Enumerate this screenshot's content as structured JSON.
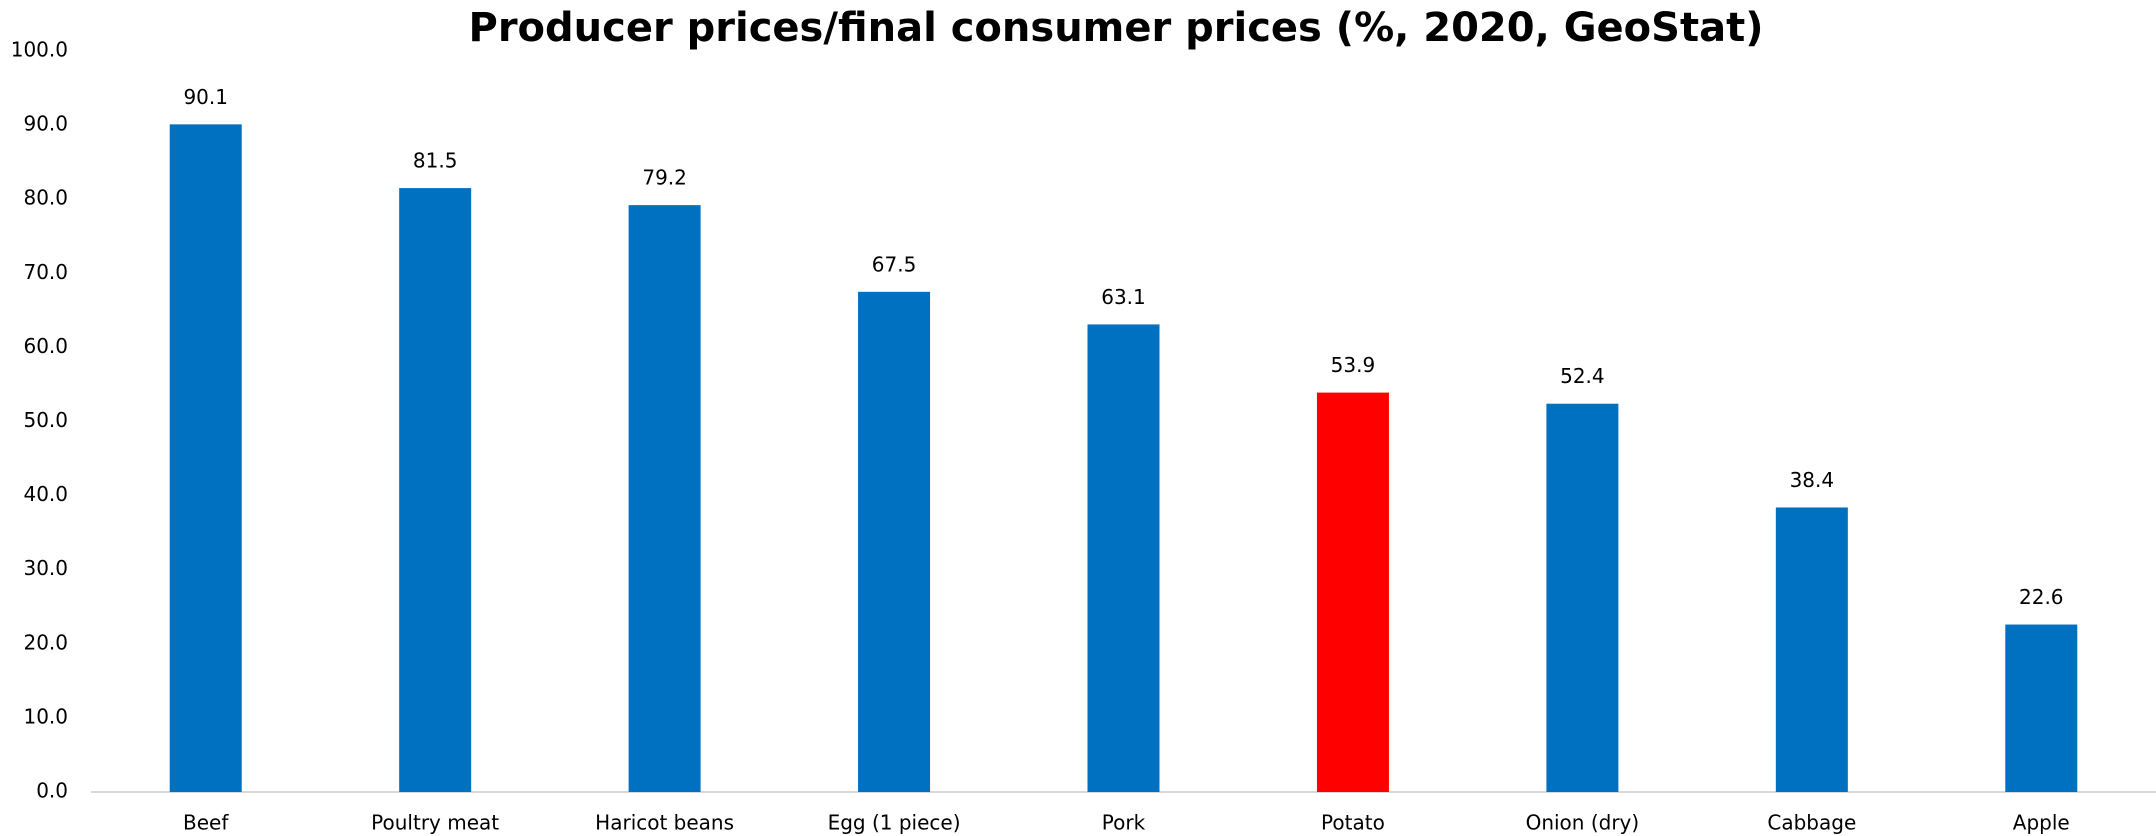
{
  "chart_data": {
    "type": "bar",
    "title": "Producer prices/final consumer prices (%, 2020, GeoStat)",
    "categories": [
      "Beef",
      "Poultry meat",
      "Haricot beans",
      "Egg (1 piece)",
      "Pork",
      "Potato",
      "Onion (dry)",
      "Cabbage",
      "Apple"
    ],
    "values": [
      90.1,
      81.5,
      79.2,
      67.5,
      63.1,
      53.9,
      52.4,
      38.4,
      22.6
    ],
    "colors": [
      "#0070c0",
      "#0070c0",
      "#0070c0",
      "#0070c0",
      "#0070c0",
      "#ff0000",
      "#0070c0",
      "#0070c0",
      "#0070c0"
    ],
    "ylim": [
      0,
      100
    ],
    "yticks": [
      {
        "value": 0,
        "label": "0.0"
      },
      {
        "value": 10,
        "label": "10.0"
      },
      {
        "value": 20,
        "label": "20.0"
      },
      {
        "value": 30,
        "label": "30.0"
      },
      {
        "value": 40,
        "label": "40.0"
      },
      {
        "value": 50,
        "label": "50.0"
      },
      {
        "value": 60,
        "label": "60.0"
      },
      {
        "value": 70,
        "label": "70.0"
      },
      {
        "value": 80,
        "label": "80.0"
      },
      {
        "value": 90,
        "label": "90.0"
      },
      {
        "value": 100,
        "label": "100.0"
      }
    ],
    "grid": false
  }
}
